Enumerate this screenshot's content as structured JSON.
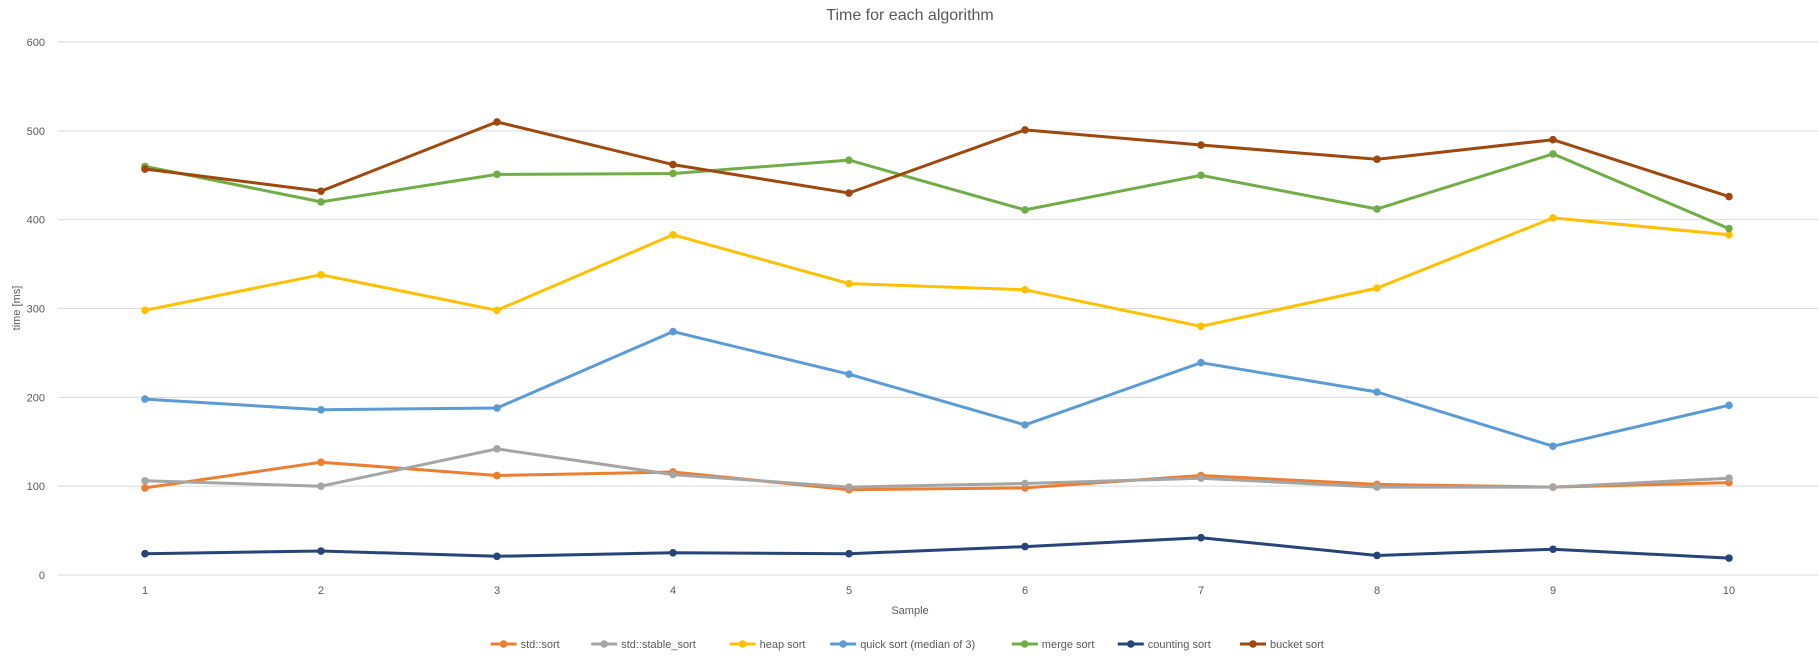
{
  "chart_data": {
    "type": "line",
    "title": "Time for each algorithm",
    "xlabel": "Sample",
    "ylabel": "time [ms]",
    "ylim": [
      0,
      600
    ],
    "yticks": [
      0,
      100,
      200,
      300,
      400,
      500,
      600
    ],
    "grid": true,
    "legend_position": "bottom",
    "categories": [
      "1",
      "2",
      "3",
      "4",
      "5",
      "6",
      "7",
      "8",
      "9",
      "10"
    ],
    "series": [
      {
        "name": "std::sort",
        "color": "#ED7D31",
        "values": [
          98,
          127,
          112,
          116,
          96,
          98,
          112,
          102,
          99,
          104
        ]
      },
      {
        "name": "std::stable_sort",
        "color": "#A5A5A5",
        "values": [
          106,
          100,
          142,
          113,
          99,
          103,
          109,
          99,
          99,
          109
        ]
      },
      {
        "name": "heap sort",
        "color": "#FFC000",
        "values": [
          298,
          338,
          298,
          383,
          328,
          321,
          280,
          323,
          402,
          383
        ]
      },
      {
        "name": "quick sort (median of 3)",
        "color": "#5B9BD5",
        "values": [
          198,
          186,
          188,
          274,
          226,
          169,
          239,
          206,
          145,
          191
        ]
      },
      {
        "name": "merge sort",
        "color": "#70AD47",
        "values": [
          460,
          420,
          451,
          452,
          467,
          411,
          450,
          412,
          474,
          390
        ]
      },
      {
        "name": "counting sort",
        "color": "#264478",
        "values": [
          24,
          27,
          21,
          25,
          24,
          32,
          42,
          22,
          29,
          19
        ]
      },
      {
        "name": "bucket sort",
        "color": "#9E480E",
        "values": [
          457,
          432,
          510,
          462,
          430,
          501,
          484,
          468,
          490,
          426
        ]
      }
    ]
  }
}
